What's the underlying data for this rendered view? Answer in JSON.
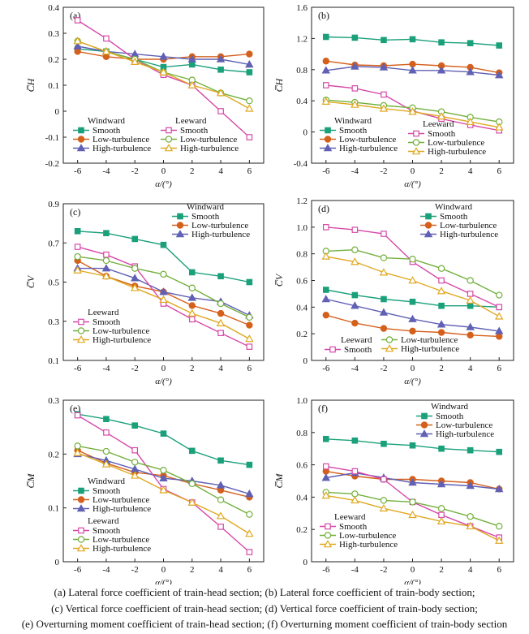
{
  "colors": {
    "windward_smooth": "#1aa07a",
    "windward_low": "#d4601c",
    "windward_high": "#6060b4",
    "leeward_smooth": "#d648a8",
    "leeward_low": "#72b03c",
    "leeward_high": "#e0a820",
    "axis": "#222222"
  },
  "legend_text": {
    "windward": "Windward",
    "leeward": "Leeward",
    "smooth": "Smooth",
    "low": "Low-turbulence",
    "high": "High-turbulence"
  },
  "captions": [
    "(a) Lateral force coefficient of train-head section; (b) Lateral force coefficient of train-body section;",
    "(c) Vertical force coefficient of  train-head section; (d) Vertical force coefficient of  train-body section;",
    "(e) Overturning moment coefficient of train-head section; (f) Overturning moment coefficient of train-body section"
  ],
  "chart_data": [
    {
      "id": "a",
      "panel_label": "(a)",
      "type": "line",
      "xlabel": "α/(°)",
      "ylabel": "C̅H",
      "x": [
        -6,
        -4,
        -2,
        0,
        2,
        4,
        6
      ],
      "xlim": [
        -7,
        7
      ],
      "ylim": [
        -0.2,
        0.4
      ],
      "yticks": [
        "-0.2",
        "-0.1",
        "0",
        "0.1",
        "0.2",
        "0.3",
        "0.4"
      ],
      "series": [
        {
          "group": "Windward",
          "name": "Smooth",
          "key": "windward_smooth",
          "marker": "square-filled",
          "values": [
            0.24,
            0.23,
            0.2,
            0.17,
            0.18,
            0.16,
            0.15
          ]
        },
        {
          "group": "Windward",
          "name": "Low-turbulence",
          "key": "windward_low",
          "marker": "circle-filled",
          "values": [
            0.23,
            0.21,
            0.2,
            0.2,
            0.21,
            0.21,
            0.22
          ]
        },
        {
          "group": "Windward",
          "name": "High-turbulence",
          "key": "windward_high",
          "marker": "triangle-filled",
          "values": [
            0.25,
            0.23,
            0.22,
            0.21,
            0.2,
            0.2,
            0.18
          ]
        },
        {
          "group": "Leeward",
          "name": "Smooth",
          "key": "leeward_smooth",
          "marker": "square-open",
          "values": [
            0.35,
            0.28,
            0.2,
            0.14,
            0.1,
            0.0,
            -0.1
          ]
        },
        {
          "group": "Leeward",
          "name": "Low-turbulence",
          "key": "leeward_low",
          "marker": "circle-open",
          "values": [
            0.27,
            0.23,
            0.2,
            0.15,
            0.12,
            0.07,
            0.04
          ]
        },
        {
          "group": "Leeward",
          "name": "High-turbulence",
          "key": "leeward_high",
          "marker": "triangle-open",
          "values": [
            0.27,
            0.23,
            0.19,
            0.15,
            0.1,
            0.07,
            0.01
          ]
        }
      ]
    },
    {
      "id": "b",
      "panel_label": "(b)",
      "type": "line",
      "xlabel": "α/(°)",
      "ylabel": "C̅H",
      "x": [
        -6,
        -4,
        -2,
        0,
        2,
        4,
        6
      ],
      "xlim": [
        -7,
        7
      ],
      "ylim": [
        -0.4,
        1.6
      ],
      "yticks": [
        "-0.4",
        "0",
        "0.4",
        "0.8",
        "1.2",
        "1.6"
      ],
      "series": [
        {
          "group": "Windward",
          "name": "Smooth",
          "key": "windward_smooth",
          "marker": "square-filled",
          "values": [
            1.22,
            1.21,
            1.18,
            1.19,
            1.15,
            1.14,
            1.11
          ]
        },
        {
          "group": "Windward",
          "name": "Low-turbulence",
          "key": "windward_low",
          "marker": "circle-filled",
          "values": [
            0.91,
            0.86,
            0.85,
            0.87,
            0.85,
            0.83,
            0.76
          ]
        },
        {
          "group": "Windward",
          "name": "High-turbulence",
          "key": "windward_high",
          "marker": "triangle-filled",
          "values": [
            0.79,
            0.84,
            0.83,
            0.79,
            0.79,
            0.77,
            0.73
          ]
        },
        {
          "group": "Leeward",
          "name": "Smooth",
          "key": "leeward_smooth",
          "marker": "square-open",
          "values": [
            0.6,
            0.56,
            0.48,
            0.27,
            0.17,
            0.09,
            0.02
          ]
        },
        {
          "group": "Leeward",
          "name": "Low-turbulence",
          "key": "leeward_low",
          "marker": "circle-open",
          "values": [
            0.41,
            0.38,
            0.34,
            0.31,
            0.26,
            0.19,
            0.13
          ]
        },
        {
          "group": "Leeward",
          "name": "High-turbulence",
          "key": "leeward_high",
          "marker": "triangle-open",
          "values": [
            0.39,
            0.35,
            0.3,
            0.26,
            0.2,
            0.13,
            0.06
          ]
        }
      ]
    },
    {
      "id": "c",
      "panel_label": "(c)",
      "type": "line",
      "xlabel": "α/(°)",
      "ylabel": "C̅V",
      "x": [
        -6,
        -4,
        -2,
        0,
        2,
        4,
        6
      ],
      "xlim": [
        -7,
        7
      ],
      "ylim": [
        0.1,
        0.9
      ],
      "yticks": [
        "0.1",
        "0.3",
        "0.5",
        "0.7",
        "0.9"
      ],
      "series": [
        {
          "group": "Windward",
          "name": "Smooth",
          "key": "windward_smooth",
          "marker": "square-filled",
          "values": [
            0.76,
            0.75,
            0.72,
            0.69,
            0.55,
            0.53,
            0.5
          ]
        },
        {
          "group": "Windward",
          "name": "Low-turbulence",
          "key": "windward_low",
          "marker": "circle-filled",
          "values": [
            0.61,
            0.53,
            0.48,
            0.45,
            0.38,
            0.34,
            0.28
          ]
        },
        {
          "group": "Windward",
          "name": "High-turbulence",
          "key": "windward_high",
          "marker": "triangle-filled",
          "values": [
            0.57,
            0.57,
            0.52,
            0.45,
            0.42,
            0.4,
            0.33
          ]
        },
        {
          "group": "Leeward",
          "name": "Smooth",
          "key": "leeward_smooth",
          "marker": "square-open",
          "values": [
            0.68,
            0.64,
            0.58,
            0.39,
            0.31,
            0.24,
            0.17
          ]
        },
        {
          "group": "Leeward",
          "name": "Low-turbulence",
          "key": "leeward_low",
          "marker": "circle-open",
          "values": [
            0.63,
            0.61,
            0.57,
            0.54,
            0.47,
            0.39,
            0.32
          ]
        },
        {
          "group": "Leeward",
          "name": "High-turbulence",
          "key": "leeward_high",
          "marker": "triangle-open",
          "values": [
            0.56,
            0.53,
            0.47,
            0.41,
            0.34,
            0.29,
            0.21
          ]
        }
      ]
    },
    {
      "id": "d",
      "panel_label": "(d)",
      "type": "line",
      "xlabel": "α/(°)",
      "ylabel": "C̅V",
      "x": [
        -6,
        -4,
        -2,
        0,
        2,
        4,
        6
      ],
      "xlim": [
        -7,
        7
      ],
      "ylim": [
        0.0,
        1.2
      ],
      "yticks": [
        "0",
        "0.2",
        "0.4",
        "0.6",
        "0.8",
        "1.0",
        "1.2"
      ],
      "series": [
        {
          "group": "Windward",
          "name": "Smooth",
          "key": "windward_smooth",
          "marker": "square-filled",
          "values": [
            0.53,
            0.49,
            0.46,
            0.44,
            0.41,
            0.41,
            0.4
          ]
        },
        {
          "group": "Windward",
          "name": "Low-turbulence",
          "key": "windward_low",
          "marker": "circle-filled",
          "values": [
            0.34,
            0.28,
            0.24,
            0.22,
            0.21,
            0.19,
            0.18
          ]
        },
        {
          "group": "Windward",
          "name": "High-turbulence",
          "key": "windward_high",
          "marker": "triangle-filled",
          "values": [
            0.46,
            0.41,
            0.36,
            0.31,
            0.27,
            0.25,
            0.22
          ]
        },
        {
          "group": "Leeward",
          "name": "Smooth",
          "key": "leeward_smooth",
          "marker": "square-open",
          "values": [
            1.0,
            0.98,
            0.95,
            0.74,
            0.6,
            0.5,
            0.4
          ]
        },
        {
          "group": "Leeward",
          "name": "Low-turbulence",
          "key": "leeward_low",
          "marker": "circle-open",
          "values": [
            0.82,
            0.83,
            0.77,
            0.76,
            0.69,
            0.6,
            0.49
          ]
        },
        {
          "group": "Leeward",
          "name": "High-turbulence",
          "key": "leeward_high",
          "marker": "triangle-open",
          "values": [
            0.78,
            0.74,
            0.66,
            0.6,
            0.52,
            0.45,
            0.33
          ]
        }
      ]
    },
    {
      "id": "e",
      "panel_label": "(e)",
      "type": "line",
      "xlabel": "α/(°)",
      "ylabel": "C̅M",
      "x": [
        -6,
        -4,
        -2,
        0,
        2,
        4,
        6
      ],
      "xlim": [
        -7,
        7
      ],
      "ylim": [
        0.0,
        0.3
      ],
      "yticks": [
        "0",
        "0.1",
        "0.2",
        "0.3"
      ],
      "series": [
        {
          "group": "Windward",
          "name": "Smooth",
          "key": "windward_smooth",
          "marker": "square-filled",
          "values": [
            0.274,
            0.265,
            0.253,
            0.238,
            0.206,
            0.188,
            0.18
          ]
        },
        {
          "group": "Windward",
          "name": "Low-turbulence",
          "key": "windward_low",
          "marker": "circle-filled",
          "values": [
            0.207,
            0.183,
            0.166,
            0.16,
            0.145,
            0.133,
            0.12
          ]
        },
        {
          "group": "Windward",
          "name": "High-turbulence",
          "key": "windward_high",
          "marker": "triangle-filled",
          "values": [
            0.2,
            0.188,
            0.172,
            0.155,
            0.15,
            0.142,
            0.126
          ]
        },
        {
          "group": "Leeward",
          "name": "Smooth",
          "key": "leeward_smooth",
          "marker": "square-open",
          "values": [
            0.272,
            0.24,
            0.207,
            0.135,
            0.11,
            0.065,
            0.018
          ]
        },
        {
          "group": "Leeward",
          "name": "Low-turbulence",
          "key": "leeward_low",
          "marker": "circle-open",
          "values": [
            0.215,
            0.205,
            0.185,
            0.17,
            0.145,
            0.115,
            0.088
          ]
        },
        {
          "group": "Leeward",
          "name": "High-turbulence",
          "key": "leeward_high",
          "marker": "triangle-open",
          "values": [
            0.202,
            0.181,
            0.16,
            0.133,
            0.11,
            0.085,
            0.052
          ]
        }
      ]
    },
    {
      "id": "f",
      "panel_label": "(f)",
      "type": "line",
      "xlabel": "α/(°)",
      "ylabel": "C̅M",
      "x": [
        -6,
        -4,
        -2,
        0,
        2,
        4,
        6
      ],
      "xlim": [
        -7,
        7
      ],
      "ylim": [
        0.0,
        1.0
      ],
      "yticks": [
        "0",
        "0.2",
        "0.4",
        "0.6",
        "0.8",
        "1.0"
      ],
      "series": [
        {
          "group": "Windward",
          "name": "Smooth",
          "key": "windward_smooth",
          "marker": "square-filled",
          "values": [
            0.76,
            0.75,
            0.73,
            0.72,
            0.7,
            0.69,
            0.68
          ]
        },
        {
          "group": "Windward",
          "name": "Low-turbulence",
          "key": "windward_low",
          "marker": "circle-filled",
          "values": [
            0.56,
            0.53,
            0.51,
            0.51,
            0.5,
            0.49,
            0.45
          ]
        },
        {
          "group": "Windward",
          "name": "High-turbulence",
          "key": "windward_high",
          "marker": "triangle-filled",
          "values": [
            0.52,
            0.55,
            0.52,
            0.49,
            0.48,
            0.47,
            0.45
          ]
        },
        {
          "group": "Leeward",
          "name": "Smooth",
          "key": "leeward_smooth",
          "marker": "square-open",
          "values": [
            0.59,
            0.56,
            0.51,
            0.37,
            0.29,
            0.22,
            0.15
          ]
        },
        {
          "group": "Leeward",
          "name": "Low-turbulence",
          "key": "leeward_low",
          "marker": "circle-open",
          "values": [
            0.43,
            0.42,
            0.38,
            0.37,
            0.33,
            0.28,
            0.22
          ]
        },
        {
          "group": "Leeward",
          "name": "High-turbulence",
          "key": "leeward_high",
          "marker": "triangle-open",
          "values": [
            0.41,
            0.38,
            0.33,
            0.29,
            0.25,
            0.22,
            0.13
          ]
        }
      ]
    }
  ]
}
